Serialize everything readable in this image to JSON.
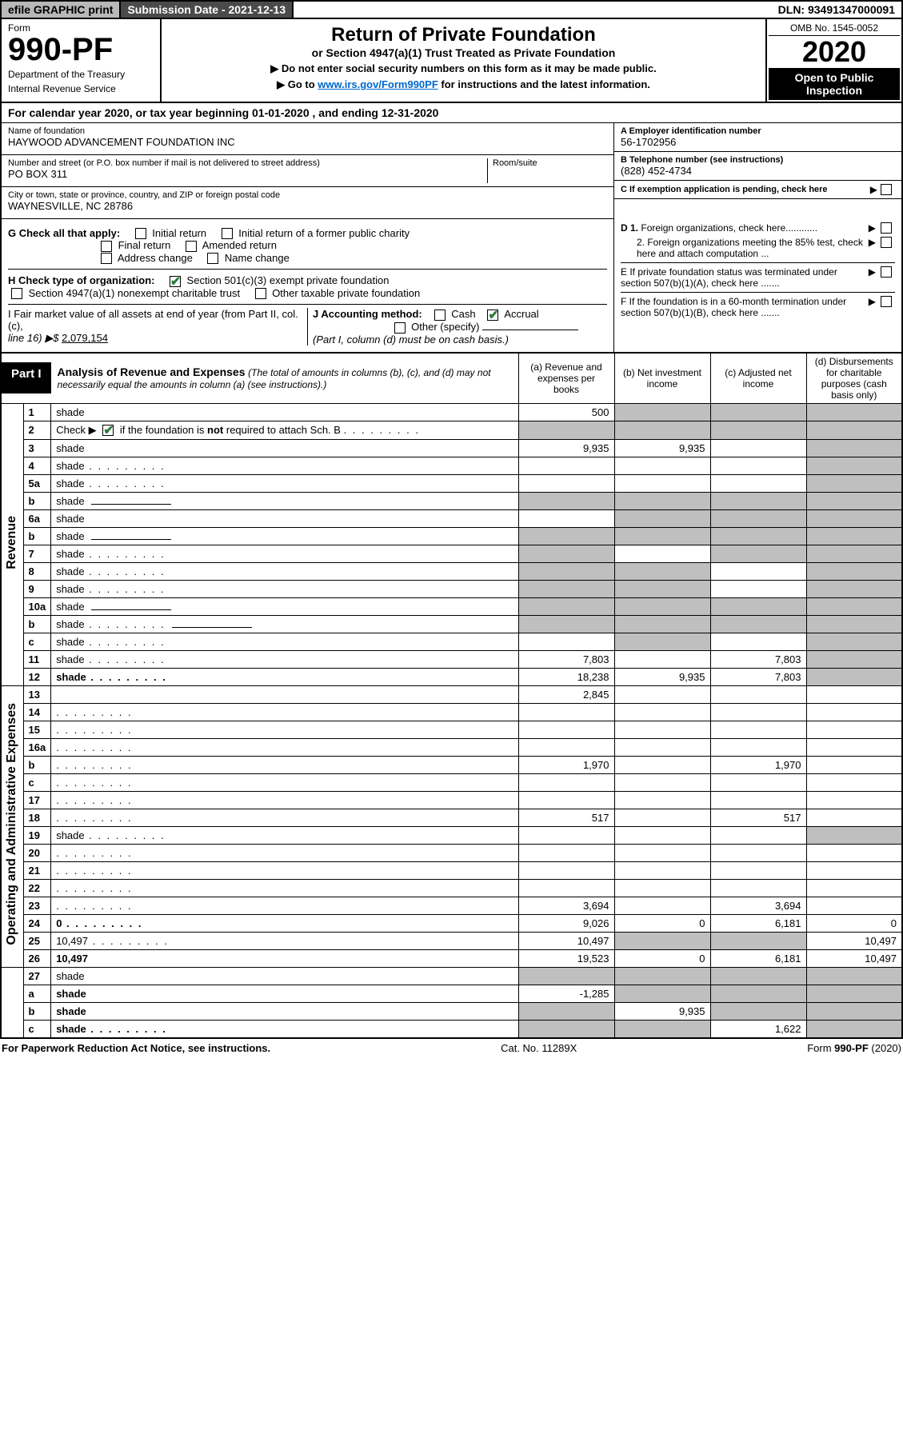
{
  "topbar": {
    "efile": "efile GRAPHIC print",
    "submission": "Submission Date - 2021-12-13",
    "dln": "DLN: 93491347000091"
  },
  "header": {
    "form_label": "Form",
    "form_number": "990-PF",
    "department": "Department of the Treasury",
    "irs": "Internal Revenue Service",
    "title": "Return of Private Foundation",
    "subtitle": "or Section 4947(a)(1) Trust Treated as Private Foundation",
    "note1": "▶ Do not enter social security numbers on this form as it may be made public.",
    "note2_prefix": "▶ Go to ",
    "note2_link": "www.irs.gov/Form990PF",
    "note2_suffix": " for instructions and the latest information.",
    "omb": "OMB No. 1545-0052",
    "year": "2020",
    "open": "Open to Public Inspection"
  },
  "calendar": "For calendar year 2020, or tax year beginning 01-01-2020                          , and ending 12-31-2020",
  "name_block": {
    "name_lbl": "Name of foundation",
    "name_val": "HAYWOOD ADVANCEMENT FOUNDATION INC",
    "addr_lbl": "Number and street (or P.O. box number if mail is not delivered to street address)",
    "addr_val": "PO BOX 311",
    "room_lbl": "Room/suite",
    "city_lbl": "City or town, state or province, country, and ZIP or foreign postal code",
    "city_val": "WAYNESVILLE, NC  28786"
  },
  "right_block": {
    "ein_lbl": "A Employer identification number",
    "ein_val": "56-1702956",
    "tel_lbl": "B Telephone number (see instructions)",
    "tel_val": "(828) 452-4734",
    "c_lbl": "C If exemption application is pending, check here",
    "d1": "D 1. Foreign organizations, check here............",
    "d2": "2. Foreign organizations meeting the 85% test, check here and attach computation ...",
    "e_lbl": "E  If private foundation status was terminated under section 507(b)(1)(A), check here .......",
    "f_lbl": "F  If the foundation is in a 60-month termination under section 507(b)(1)(B), check here .......",
    "arrow": "▶"
  },
  "g_block": {
    "g": "G Check all that apply:",
    "initial": "Initial return",
    "initial_former": "Initial return of a former public charity",
    "final": "Final return",
    "amended": "Amended return",
    "addr": "Address change",
    "name": "Name change"
  },
  "h_block": {
    "h": "H Check type of organization:",
    "s501": "Section 501(c)(3) exempt private foundation",
    "s4947": "Section 4947(a)(1) nonexempt charitable trust",
    "other": "Other taxable private foundation"
  },
  "i_block": {
    "i_lbl": "I Fair market value of all assets at end of year (from Part II, col. (c),",
    "i_line": "line 16) ▶$",
    "i_val": "2,079,154"
  },
  "j_block": {
    "j": "J Accounting method:",
    "cash": "Cash",
    "accrual": "Accrual",
    "other": "Other (specify)",
    "note": "(Part I, column (d) must be on cash basis.)"
  },
  "part1": {
    "badge": "Part I",
    "title": "Analysis of Revenue and Expenses",
    "title_note": "(The total of amounts in columns (b), (c), and (d) may not necessarily equal the amounts in column (a) (see instructions).)",
    "col_a": "(a)  Revenue and expenses per books",
    "col_b": "(b)  Net investment income",
    "col_c": "(c)  Adjusted net income",
    "col_d": "(d)  Disbursements for charitable purposes (cash basis only)"
  },
  "sections": {
    "revenue": "Revenue",
    "opex": "Operating and Administrative Expenses"
  },
  "rows": [
    {
      "n": "1",
      "d": "shade",
      "a": "500",
      "b": "shade",
      "c": "shade"
    },
    {
      "n": "2",
      "d": "shade",
      "dots": true,
      "a": "shade",
      "b": "shade",
      "c": "shade",
      "special": "check"
    },
    {
      "n": "3",
      "d": "shade",
      "a": "9,935",
      "b": "9,935",
      "c": ""
    },
    {
      "n": "4",
      "d": "shade",
      "dots": true,
      "a": "",
      "b": "",
      "c": ""
    },
    {
      "n": "5a",
      "d": "shade",
      "dots": true,
      "a": "",
      "b": "",
      "c": ""
    },
    {
      "n": "b",
      "d": "shade",
      "a": "shade",
      "b": "shade",
      "c": "shade",
      "inline": true
    },
    {
      "n": "6a",
      "d": "shade",
      "a": "",
      "b": "shade",
      "c": "shade"
    },
    {
      "n": "b",
      "d": "shade",
      "a": "shade",
      "b": "shade",
      "c": "shade",
      "inline": true
    },
    {
      "n": "7",
      "d": "shade",
      "dots": true,
      "a": "shade",
      "b": "",
      "c": "shade"
    },
    {
      "n": "8",
      "d": "shade",
      "dots": true,
      "a": "shade",
      "b": "shade",
      "c": ""
    },
    {
      "n": "9",
      "d": "shade",
      "dots": true,
      "a": "shade",
      "b": "shade",
      "c": ""
    },
    {
      "n": "10a",
      "d": "shade",
      "a": "shade",
      "b": "shade",
      "c": "shade",
      "inline": true
    },
    {
      "n": "b",
      "d": "shade",
      "dots": true,
      "a": "shade",
      "b": "shade",
      "c": "shade",
      "inline": true
    },
    {
      "n": "c",
      "d": "shade",
      "dots": true,
      "a": "",
      "b": "shade",
      "c": ""
    },
    {
      "n": "11",
      "d": "shade",
      "dots": true,
      "a": "7,803",
      "b": "",
      "c": "7,803"
    },
    {
      "n": "12",
      "d": "shade",
      "dots": true,
      "bold": true,
      "a": "18,238",
      "b": "9,935",
      "c": "7,803"
    },
    {
      "n": "13",
      "d": "",
      "a": "2,845",
      "b": "",
      "c": ""
    },
    {
      "n": "14",
      "d": "",
      "dots": true,
      "a": "",
      "b": "",
      "c": ""
    },
    {
      "n": "15",
      "d": "",
      "dots": true,
      "a": "",
      "b": "",
      "c": ""
    },
    {
      "n": "16a",
      "d": "",
      "dots": true,
      "a": "",
      "b": "",
      "c": ""
    },
    {
      "n": "b",
      "d": "",
      "dots": true,
      "a": "1,970",
      "b": "",
      "c": "1,970"
    },
    {
      "n": "c",
      "d": "",
      "dots": true,
      "a": "",
      "b": "",
      "c": ""
    },
    {
      "n": "17",
      "d": "",
      "dots": true,
      "a": "",
      "b": "",
      "c": ""
    },
    {
      "n": "18",
      "d": "",
      "dots": true,
      "a": "517",
      "b": "",
      "c": "517"
    },
    {
      "n": "19",
      "d": "shade",
      "dots": true,
      "a": "",
      "b": "",
      "c": ""
    },
    {
      "n": "20",
      "d": "",
      "dots": true,
      "a": "",
      "b": "",
      "c": ""
    },
    {
      "n": "21",
      "d": "",
      "dots": true,
      "a": "",
      "b": "",
      "c": ""
    },
    {
      "n": "22",
      "d": "",
      "dots": true,
      "a": "",
      "b": "",
      "c": ""
    },
    {
      "n": "23",
      "d": "",
      "dots": true,
      "a": "3,694",
      "b": "",
      "c": "3,694"
    },
    {
      "n": "24",
      "d": "0",
      "dots": true,
      "bold": true,
      "a": "9,026",
      "b": "0",
      "c": "6,181"
    },
    {
      "n": "25",
      "d": "10,497",
      "dots": true,
      "a": "10,497",
      "b": "shade",
      "c": "shade"
    },
    {
      "n": "26",
      "d": "10,497",
      "bold": true,
      "a": "19,523",
      "b": "0",
      "c": "6,181"
    },
    {
      "n": "27",
      "d": "shade",
      "a": "shade",
      "b": "shade",
      "c": "shade"
    },
    {
      "n": "a",
      "d": "shade",
      "bold": true,
      "a": "-1,285",
      "b": "shade",
      "c": "shade"
    },
    {
      "n": "b",
      "d": "shade",
      "bold": true,
      "a": "shade",
      "b": "9,935",
      "c": "shade"
    },
    {
      "n": "c",
      "d": "shade",
      "dots": true,
      "bold": true,
      "a": "shade",
      "b": "shade",
      "c": "1,622"
    }
  ],
  "footer": {
    "left": "For Paperwork Reduction Act Notice, see instructions.",
    "mid": "Cat. No. 11289X",
    "right": "Form 990-PF (2020)"
  }
}
